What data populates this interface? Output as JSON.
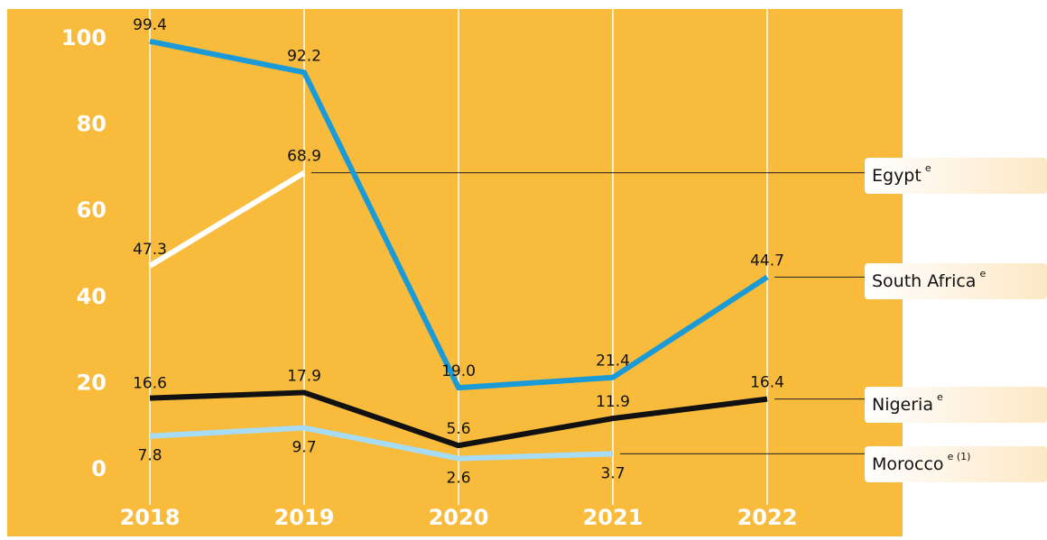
{
  "chart_data": {
    "type": "line",
    "categories": [
      "2018",
      "2019",
      "2020",
      "2021",
      "2022"
    ],
    "ylim": [
      0,
      100
    ],
    "yticks": [
      0,
      20,
      40,
      60,
      80,
      100
    ],
    "grid": true,
    "background": "#f8bb3c",
    "series": [
      {
        "name": "Egypt",
        "note": "e",
        "color": "#ffffff",
        "values": [
          47.3,
          68.9,
          null,
          null,
          null
        ],
        "value_labels": [
          "47.3",
          "68.9",
          null,
          null,
          null
        ]
      },
      {
        "name": "South Africa",
        "note": "e",
        "color": "#1a9ad6",
        "values": [
          99.4,
          92.2,
          19.0,
          21.4,
          44.7
        ],
        "value_labels": [
          "99.4",
          "92.2",
          "19.0",
          "21.4",
          "44.7"
        ]
      },
      {
        "name": "Nigeria",
        "note": "e",
        "color": "#111111",
        "values": [
          16.6,
          17.9,
          5.6,
          11.9,
          16.4
        ],
        "value_labels": [
          "16.6",
          "17.9",
          "5.6",
          "11.9",
          "16.4"
        ]
      },
      {
        "name": "Morocco",
        "note": "e (1)",
        "color": "#a6dcf5",
        "values": [
          7.8,
          9.7,
          2.6,
          3.7,
          null
        ],
        "value_labels": [
          "7.8",
          "9.7",
          "2.6",
          "3.7",
          null
        ]
      }
    ]
  }
}
